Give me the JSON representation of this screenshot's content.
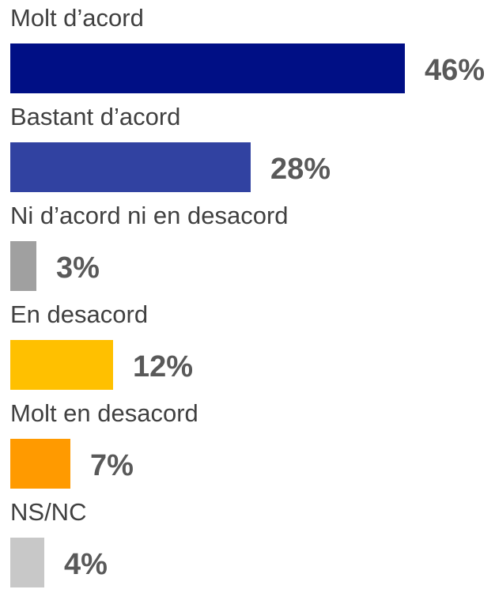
{
  "chart_data": {
    "type": "bar",
    "orientation": "horizontal",
    "categories": [
      "Molt d’acord",
      "Bastant d’acord",
      "Ni d’acord ni en desacord",
      "En desacord",
      "Molt en desacord",
      "NS/NC"
    ],
    "values": [
      46,
      28,
      3,
      12,
      7,
      4
    ],
    "value_labels": [
      "46%",
      "28%",
      "3%",
      "12%",
      "7%",
      "4%"
    ],
    "colors": [
      "#000f85",
      "#3142a1",
      "#a0a0a0",
      "#ffc000",
      "#ff9a00",
      "#c8c8c8"
    ],
    "unit": "%",
    "xlim": [
      0,
      46
    ],
    "title": "",
    "xlabel": "",
    "ylabel": "",
    "grid": false,
    "legend": "none"
  }
}
